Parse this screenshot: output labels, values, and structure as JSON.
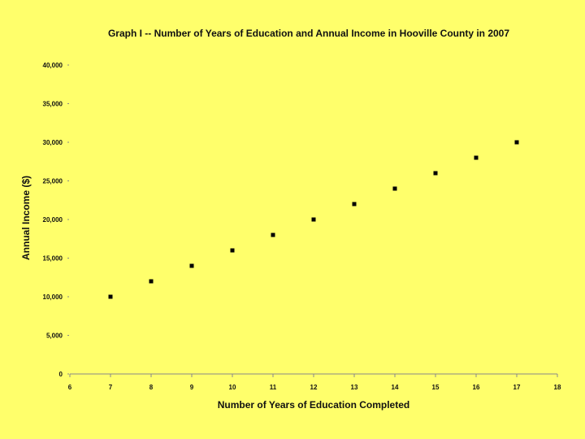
{
  "chart_data": {
    "type": "scatter",
    "title": "Graph I -- Number of Years of Education and Annual Income in Hooville County in 2007",
    "xlabel": "Number of Years of Education Completed",
    "ylabel": "Annual Income ($)",
    "xlim": [
      6,
      18
    ],
    "ylim": [
      0,
      40000
    ],
    "x_ticks": [
      6,
      7,
      8,
      9,
      10,
      11,
      12,
      13,
      14,
      15,
      16,
      17,
      18
    ],
    "y_ticks": [
      0,
      5000,
      10000,
      15000,
      20000,
      25000,
      30000,
      35000,
      40000
    ],
    "x_tick_labels": [
      "6",
      "7",
      "8",
      "9",
      "10",
      "11",
      "12",
      "13",
      "14",
      "15",
      "16",
      "17",
      "18"
    ],
    "y_tick_labels": [
      "0",
      "5,000",
      "10,000",
      "15,000",
      "20,000",
      "25,000",
      "30,000",
      "35,000",
      "40,000"
    ],
    "points": [
      {
        "x": 7,
        "y": 10000
      },
      {
        "x": 8,
        "y": 12000
      },
      {
        "x": 9,
        "y": 14000
      },
      {
        "x": 10,
        "y": 16000
      },
      {
        "x": 11,
        "y": 18000
      },
      {
        "x": 12,
        "y": 20000
      },
      {
        "x": 13,
        "y": 22000
      },
      {
        "x": 14,
        "y": 24000
      },
      {
        "x": 15,
        "y": 26000
      },
      {
        "x": 16,
        "y": 28000
      },
      {
        "x": 17,
        "y": 30000
      }
    ],
    "grid": false,
    "marker_color": "#000000",
    "axis_color": "#888888"
  },
  "colors": {
    "background": "#FFFF6B"
  }
}
